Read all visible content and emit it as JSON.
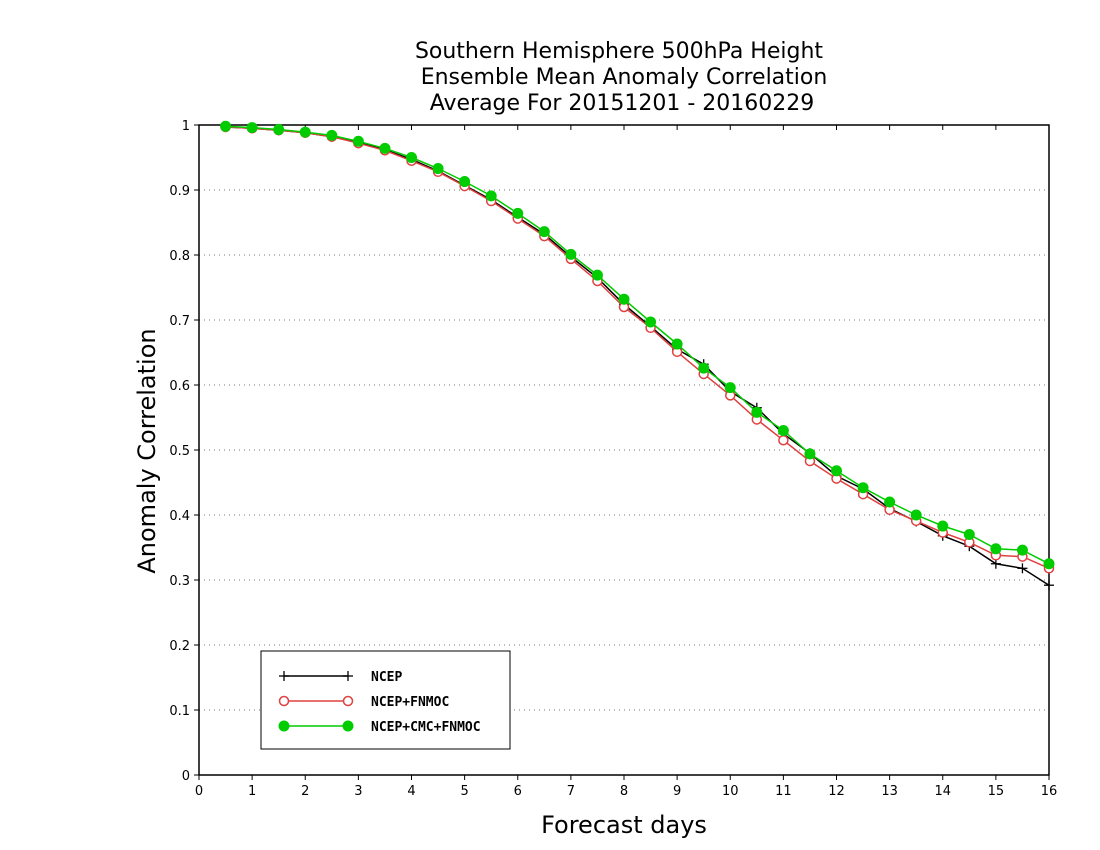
{
  "chart_data": {
    "type": "line",
    "title_lines": [
      "Southern Hemisphere 500hPa Height",
      "Ensemble Mean Anomaly Correlation",
      "Average For 20151201 - 20160229"
    ],
    "xlabel": "Forecast days",
    "ylabel": "Anomaly Correlation",
    "xlim": [
      0,
      16
    ],
    "ylim": [
      0,
      1
    ],
    "x_ticks": [
      "0",
      "1",
      "2",
      "3",
      "4",
      "5",
      "6",
      "7",
      "8",
      "9",
      "10",
      "11",
      "12",
      "13",
      "14",
      "15",
      "16"
    ],
    "y_ticks": [
      "0",
      "0.1",
      "0.2",
      "0.3",
      "0.4",
      "0.5",
      "0.6",
      "0.7",
      "0.8",
      "0.9",
      "1"
    ],
    "grid": "dotted horizontal",
    "legend_position": "bottom-left",
    "x": [
      0.5,
      1,
      1.5,
      2,
      2.5,
      3,
      3.5,
      4,
      4.5,
      5,
      5.5,
      6,
      6.5,
      7,
      7.5,
      8,
      8.5,
      9,
      9.5,
      10,
      10.5,
      11,
      11.5,
      12,
      12.5,
      13,
      13.5,
      14,
      14.5,
      15,
      15.5,
      16
    ],
    "series": [
      {
        "name": "NCEP",
        "color": "#000000",
        "marker": "plus",
        "values": [
          0.997,
          0.995,
          0.992,
          0.988,
          0.982,
          0.973,
          0.962,
          0.947,
          0.929,
          0.907,
          0.885,
          0.858,
          0.832,
          0.797,
          0.765,
          0.724,
          0.69,
          0.655,
          0.632,
          0.59,
          0.565,
          0.525,
          0.495,
          0.46,
          0.44,
          0.41,
          0.39,
          0.368,
          0.352,
          0.325,
          0.318,
          0.292
        ]
      },
      {
        "name": "NCEP+FNMOC",
        "color": "#e04040",
        "marker": "open-circle",
        "values": [
          0.997,
          0.995,
          0.992,
          0.988,
          0.982,
          0.972,
          0.961,
          0.945,
          0.928,
          0.906,
          0.883,
          0.856,
          0.829,
          0.794,
          0.76,
          0.72,
          0.688,
          0.651,
          0.617,
          0.584,
          0.547,
          0.515,
          0.483,
          0.456,
          0.432,
          0.408,
          0.391,
          0.373,
          0.358,
          0.338,
          0.336,
          0.318
        ]
      },
      {
        "name": "NCEP+CMC+FNMOC",
        "color": "#00cc00",
        "marker": "filled-circle",
        "values": [
          0.998,
          0.996,
          0.993,
          0.989,
          0.984,
          0.975,
          0.964,
          0.95,
          0.933,
          0.913,
          0.891,
          0.864,
          0.836,
          0.801,
          0.769,
          0.732,
          0.697,
          0.663,
          0.626,
          0.596,
          0.558,
          0.53,
          0.494,
          0.468,
          0.442,
          0.42,
          0.4,
          0.383,
          0.37,
          0.348,
          0.346,
          0.325
        ]
      }
    ]
  }
}
